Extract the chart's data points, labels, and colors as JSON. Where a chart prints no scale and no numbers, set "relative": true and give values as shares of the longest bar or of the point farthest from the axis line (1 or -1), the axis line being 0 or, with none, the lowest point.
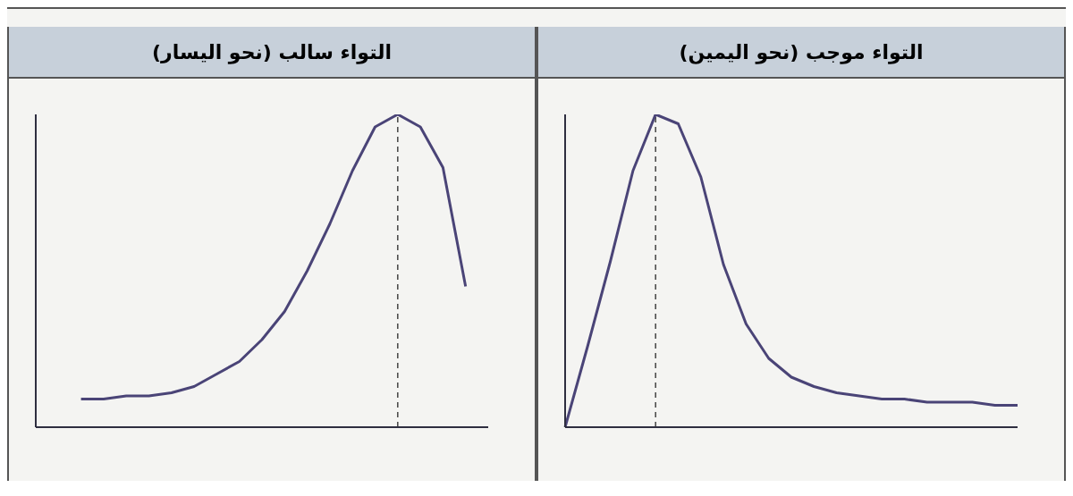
{
  "chart_data": [
    {
      "type": "line",
      "title": "التواء موجب (نحو اليمين)",
      "relative": true,
      "grid": false,
      "legend": false,
      "marker": "none",
      "line_style": "solid",
      "categories": [
        null,
        null,
        null,
        null,
        null,
        null,
        null,
        null,
        null,
        null,
        null,
        null,
        null,
        null,
        null,
        null,
        null,
        null,
        null,
        null,
        null
      ],
      "series": [
        {
          "color": "#4a4477",
          "values": [
            0,
            0.26,
            0.53,
            0.82,
            1,
            0.97,
            0.8,
            0.52,
            0.33,
            0.22,
            0.16,
            0.13,
            0.11,
            0.1,
            0.09,
            0.09,
            0.08,
            0.08,
            0.08,
            0.07,
            0.07
          ]
        }
      ],
      "ref_lines": [
        {
          "axis": "x",
          "color": "#444444",
          "line_style": "dashed"
        }
      ]
    },
    {
      "type": "line",
      "title": "التواء سالب (نحو اليسار)",
      "relative": true,
      "grid": false,
      "legend": false,
      "marker": "none",
      "line_style": "solid",
      "categories": [
        null,
        null,
        null,
        null,
        null,
        null,
        null,
        null,
        null,
        null,
        null,
        null,
        null,
        null,
        null,
        null,
        null,
        null,
        null,
        null,
        null
      ],
      "series": [
        {
          "color": "#4a4477",
          "values": [
            null,
            null,
            0.09,
            0.09,
            0.1,
            0.1,
            0.11,
            0.13,
            0.17,
            0.21,
            0.28,
            0.37,
            0.5,
            0.65,
            0.82,
            0.96,
            1,
            0.96,
            0.83,
            0.45,
            null
          ]
        }
      ],
      "ref_lines": [
        {
          "axis": "x",
          "color": "#444444",
          "line_style": "dashed"
        }
      ]
    }
  ]
}
